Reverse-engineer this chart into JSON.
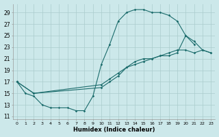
{
  "xlabel": "Humidex (Indice chaleur)",
  "bg_color": "#cce8ea",
  "grid_color": "#aacccc",
  "line_color": "#1a6b6b",
  "xlim": [
    -0.5,
    23.5
  ],
  "ylim": [
    10.5,
    30.5
  ],
  "xticks": [
    0,
    1,
    2,
    3,
    4,
    5,
    6,
    7,
    8,
    9,
    10,
    11,
    12,
    13,
    14,
    15,
    16,
    17,
    18,
    19,
    20,
    21,
    22,
    23
  ],
  "yticks": [
    11,
    13,
    15,
    17,
    19,
    21,
    23,
    25,
    27,
    29
  ],
  "lines": [
    {
      "x": [
        0,
        1,
        2,
        3,
        4,
        5,
        6,
        7,
        8,
        9,
        10,
        11,
        12,
        13,
        14,
        15,
        16,
        17,
        18,
        19,
        20,
        21
      ],
      "y": [
        17,
        15,
        14.5,
        13,
        12.5,
        12.5,
        12.5,
        12,
        12,
        14.5,
        20,
        23.5,
        27.5,
        29,
        29.5,
        29.5,
        29,
        29,
        28.5,
        27.5,
        25,
        23.5
      ]
    },
    {
      "x": [
        0,
        2,
        10,
        11,
        12,
        13,
        14,
        15,
        16,
        17,
        18,
        19,
        20,
        21,
        22,
        23
      ],
      "y": [
        17,
        15,
        16,
        17,
        18,
        19.5,
        20.5,
        21,
        21,
        21.5,
        21.5,
        22,
        25,
        24,
        22.5,
        22
      ]
    },
    {
      "x": [
        0,
        2,
        10,
        11,
        12,
        13,
        14,
        15,
        16,
        17,
        18,
        19,
        20,
        21,
        22,
        23
      ],
      "y": [
        17,
        15,
        16.5,
        17.5,
        18.5,
        19.5,
        20,
        20.5,
        21,
        21.5,
        22,
        22.5,
        22.5,
        22,
        22.5,
        22
      ]
    }
  ]
}
